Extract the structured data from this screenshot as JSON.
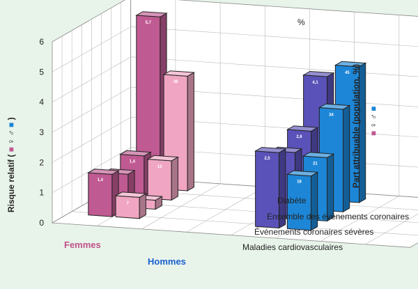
{
  "chart_data": {
    "type": "bar",
    "groups": [
      {
        "name": "Femmes",
        "color": "#c0508a"
      },
      {
        "name": "Hommes",
        "color": "#1a5fd0"
      }
    ],
    "categories": [
      "Diabète",
      "Ensemble des événements coronaires",
      "Événements coronaires sévères",
      "Maladies cardiovasculaires"
    ],
    "left_axis": {
      "label": "Risque relatif (",
      "legend_symbols": "♀ ♂",
      "legend_close": ")",
      "ylim": [
        0,
        6
      ],
      "ticks": [
        "0",
        "1",
        "2",
        "3",
        "4",
        "5",
        "6"
      ]
    },
    "right_axis": {
      "label": "Part attribuable (population, %)",
      "legend_symbols": "♀ ♂",
      "unit": "%",
      "ylim": [
        0,
        60
      ],
      "ticks": [
        "0",
        "10",
        "20",
        "30",
        "40",
        "50",
        "60"
      ]
    },
    "series": [
      {
        "name": "Femmes – risque relatif",
        "group": "Femmes",
        "measure": "rr",
        "color": "#c05a92",
        "values": [
          5.7,
          1.4,
          1.1,
          1.4
        ],
        "labels": [
          "5,7",
          "1,4",
          "1,1",
          "1,4"
        ]
      },
      {
        "name": "Femmes – part attribuable",
        "group": "Femmes",
        "measure": "pa",
        "color": "#f0a6c2",
        "values": [
          38,
          13,
          3,
          7
        ],
        "labels": [
          "38",
          "13",
          "3",
          "7"
        ]
      },
      {
        "name": "Hommes – risque relatif",
        "group": "Hommes",
        "measure": "rr",
        "color": "#5a52b8",
        "values": [
          4.1,
          2.6,
          2.2,
          2.5
        ],
        "labels": [
          "4,1",
          "2,6",
          "2,2",
          "2,5"
        ]
      },
      {
        "name": "Hommes – part attribuable",
        "group": "Hommes",
        "measure": "pa",
        "color": "#1d86d6",
        "values": [
          45,
          34,
          21,
          18
        ],
        "labels": [
          "45",
          "34",
          "21",
          "18"
        ]
      }
    ],
    "grid": true,
    "legend": "none"
  }
}
